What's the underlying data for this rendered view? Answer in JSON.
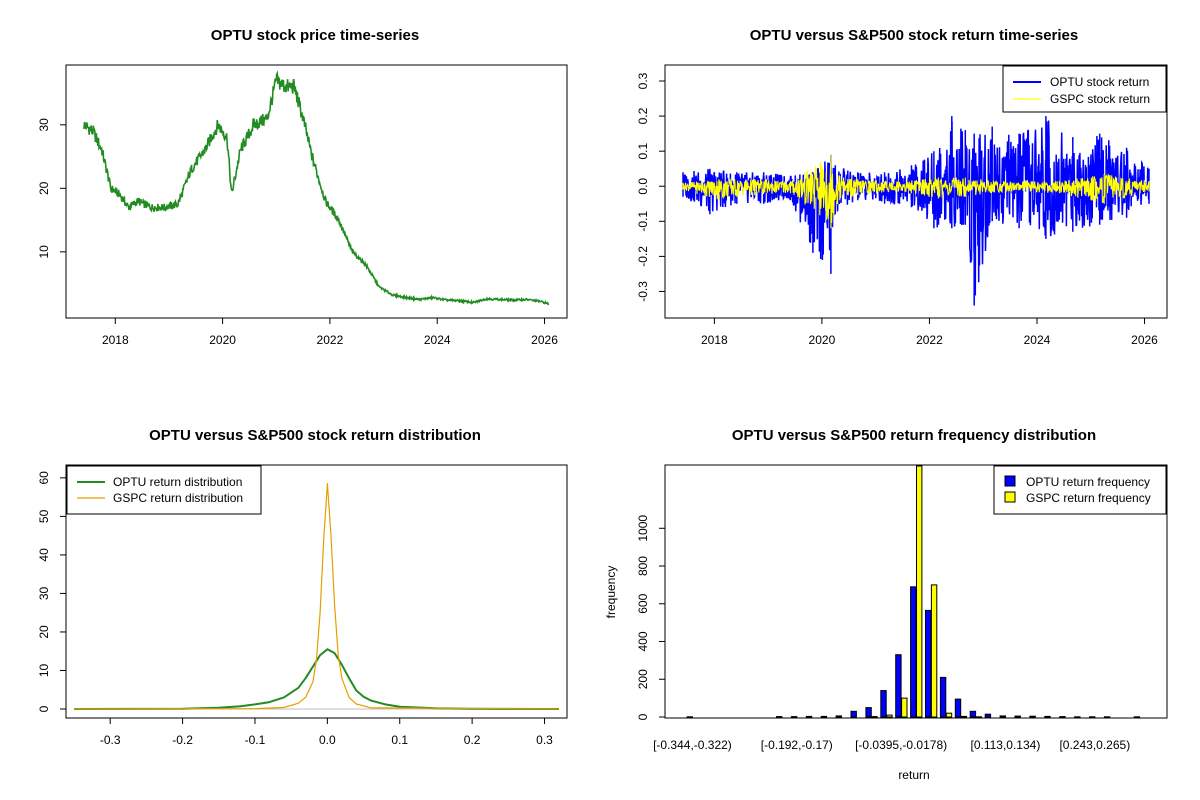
{
  "chart_data": [
    {
      "type": "line",
      "title": "OPTU stock price time-series",
      "color": "#228B22",
      "x_ticks": [
        "2018",
        "2020",
        "2022",
        "2024",
        "2026"
      ],
      "y_ticks": [
        "10",
        "20",
        "30"
      ],
      "xlim": [
        "2017-06",
        "2026-02"
      ],
      "ylim": [
        1,
        38
      ],
      "series": [
        {
          "x": [
            "2017-06",
            "2017-08",
            "2017-10",
            "2017-12",
            "2018-02",
            "2018-04",
            "2018-06",
            "2018-09",
            "2018-12",
            "2019-03",
            "2019-06",
            "2019-09",
            "2019-12",
            "2020-02",
            "2020-03",
            "2020-05",
            "2020-08",
            "2020-11",
            "2021-01",
            "2021-03",
            "2021-05",
            "2021-07",
            "2021-09",
            "2021-12",
            "2022-03",
            "2022-06",
            "2022-09",
            "2022-12",
            "2023-03",
            "2023-06",
            "2023-09",
            "2023-12",
            "2024-03",
            "2024-06",
            "2024-09",
            "2024-12",
            "2025-03",
            "2025-06",
            "2025-09",
            "2025-12",
            "2026-02"
          ],
          "y": [
            30,
            29,
            26,
            20,
            19,
            17,
            18,
            17,
            17,
            17.5,
            23,
            26,
            30,
            28,
            19,
            26,
            30,
            31,
            37,
            36,
            36,
            31,
            25,
            18,
            15,
            10,
            8,
            4.5,
            3.2,
            2.8,
            2.5,
            2.8,
            2.4,
            2.3,
            2.0,
            2.6,
            2.5,
            2.4,
            2.5,
            2.2,
            1.8
          ]
        }
      ]
    },
    {
      "type": "line",
      "title": "OPTU versus S&P500 stock return time-series",
      "x_ticks": [
        "2018",
        "2020",
        "2022",
        "2024",
        "2026"
      ],
      "y_ticks": [
        "-0.3",
        "-0.2",
        "-0.1",
        "0.0",
        "0.1",
        "0.2",
        "0.3"
      ],
      "xlim": [
        "2017-06",
        "2026-02"
      ],
      "ylim": [
        -0.35,
        0.32
      ],
      "legend": "top-right",
      "series": [
        {
          "name": "OPTU stock return",
          "color": "#0000FF",
          "x": [
            "2017-06",
            "2017-12",
            "2018-06",
            "2018-12",
            "2019-06",
            "2019-11",
            "2020-03",
            "2020-04",
            "2020-09",
            "2021-03",
            "2021-09",
            "2022-02",
            "2022-06",
            "2022-09",
            "2022-11",
            "2023-03",
            "2023-09",
            "2024-03",
            "2024-09",
            "2025-03",
            "2025-09",
            "2026-02"
          ],
          "y_high": [
            0.04,
            0.05,
            0.04,
            0.04,
            0.03,
            0.04,
            0.09,
            0.06,
            0.04,
            0.04,
            0.06,
            0.1,
            0.2,
            0.16,
            0.15,
            0.17,
            0.15,
            0.2,
            0.14,
            0.15,
            0.11,
            0.05
          ],
          "y_low": [
            -0.03,
            -0.08,
            -0.05,
            -0.05,
            -0.04,
            -0.19,
            -0.25,
            -0.08,
            -0.04,
            -0.05,
            -0.06,
            -0.12,
            -0.12,
            -0.11,
            -0.34,
            -0.1,
            -0.12,
            -0.15,
            -0.13,
            -0.11,
            -0.09,
            -0.05
          ]
        },
        {
          "name": "GSPC stock return",
          "color": "#FFFF00",
          "x": [
            "2017-06",
            "2018-02",
            "2018-10",
            "2019-06",
            "2020-03",
            "2020-05",
            "2020-09",
            "2021-06",
            "2022-03",
            "2022-09",
            "2023-06",
            "2024-06",
            "2025-04",
            "2026-02"
          ],
          "y_high": [
            0.01,
            0.02,
            0.02,
            0.015,
            0.09,
            0.03,
            0.02,
            0.015,
            0.025,
            0.025,
            0.015,
            0.015,
            0.035,
            0.015
          ],
          "y_low": [
            -0.01,
            -0.04,
            -0.025,
            -0.02,
            -0.12,
            -0.04,
            -0.025,
            -0.015,
            -0.035,
            -0.03,
            -0.015,
            -0.02,
            -0.05,
            -0.015
          ]
        }
      ]
    },
    {
      "type": "line",
      "title": "OPTU versus S&P500 stock return distribution",
      "x_ticks": [
        "-0.3",
        "-0.2",
        "-0.1",
        "0.0",
        "0.1",
        "0.2",
        "0.3"
      ],
      "y_ticks": [
        "0",
        "10",
        "20",
        "30",
        "40",
        "50",
        "60"
      ],
      "xlim": [
        -0.35,
        0.32
      ],
      "ylim": [
        0,
        61
      ],
      "legend": "top-left",
      "series": [
        {
          "name": "OPTU return distribution",
          "color": "#228B22",
          "x": [
            -0.35,
            -0.2,
            -0.15,
            -0.12,
            -0.1,
            -0.08,
            -0.06,
            -0.04,
            -0.03,
            -0.02,
            -0.01,
            0.0,
            0.01,
            0.02,
            0.03,
            0.04,
            0.05,
            0.06,
            0.08,
            0.1,
            0.15,
            0.2,
            0.32
          ],
          "y": [
            0,
            0.05,
            0.3,
            0.7,
            1.2,
            1.8,
            3,
            5.5,
            8,
            11,
            14,
            15.5,
            14.5,
            11.5,
            8,
            4.8,
            3.2,
            2.2,
            1.2,
            0.6,
            0.2,
            0.05,
            0
          ]
        },
        {
          "name": "GSPC return distribution",
          "color": "#E69F00",
          "x": [
            -0.35,
            -0.1,
            -0.06,
            -0.04,
            -0.03,
            -0.02,
            -0.015,
            -0.01,
            -0.005,
            0.0,
            0.005,
            0.01,
            0.015,
            0.02,
            0.03,
            0.04,
            0.06,
            0.32
          ],
          "y": [
            0,
            0.1,
            0.4,
            1.5,
            3,
            7,
            13,
            25,
            44,
            58.5,
            45,
            27,
            14,
            8,
            3,
            1.3,
            0.3,
            0
          ]
        }
      ]
    },
    {
      "type": "bar",
      "title": "OPTU versus S&P500 return frequency distribution",
      "xlabel": "return",
      "ylabel": "frequency",
      "ylim": [
        0,
        1330
      ],
      "y_ticks": [
        "0",
        "200",
        "400",
        "600",
        "800",
        "1000"
      ],
      "x_tick_labels": [
        "[-0.344,-0.322)",
        "[-0.192,-0.17)",
        "[-0.0395,-0.0178)",
        "[0.113,0.134)",
        "[0.243,0.265)"
      ],
      "x_tick_bins": [
        0,
        7,
        14,
        21,
        27
      ],
      "legend": "top-right",
      "bin_count": 31,
      "series": [
        {
          "name": "OPTU return frequency",
          "color": "#0000FF",
          "values": [
            1,
            0,
            0,
            0,
            0,
            0,
            2,
            2,
            3,
            3,
            6,
            30,
            50,
            140,
            330,
            690,
            565,
            210,
            95,
            30,
            15,
            6,
            5,
            4,
            3,
            2,
            1,
            1,
            1,
            0,
            1
          ]
        },
        {
          "name": "GSPC return frequency",
          "color": "#FFFF00",
          "values": [
            0,
            0,
            0,
            0,
            0,
            0,
            0,
            0,
            0,
            0,
            0,
            0,
            2,
            10,
            100,
            1330,
            700,
            20,
            3,
            1,
            0,
            0,
            0,
            0,
            0,
            0,
            0,
            0,
            0,
            0,
            0
          ]
        }
      ]
    }
  ]
}
